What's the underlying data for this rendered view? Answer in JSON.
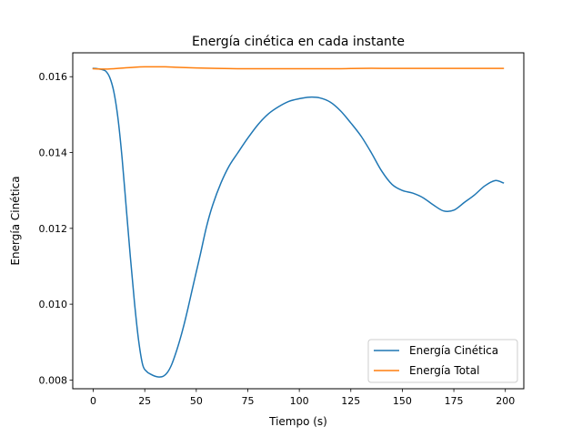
{
  "chart_data": {
    "type": "line",
    "title": "Energía cinética en cada instante",
    "xlabel": "Tiempo (s)",
    "ylabel": "Energía Cinética",
    "xlim": [
      -9.95,
      208.95
    ],
    "ylim": [
      0.00777,
      0.01663
    ],
    "xticks": [
      0,
      25,
      50,
      75,
      100,
      125,
      150,
      175,
      200
    ],
    "xtick_labels": [
      "0",
      "25",
      "50",
      "75",
      "100",
      "125",
      "150",
      "175",
      "200"
    ],
    "yticks": [
      0.008,
      0.01,
      0.012,
      0.014,
      0.016
    ],
    "ytick_labels": [
      "0.008",
      "0.010",
      "0.012",
      "0.014",
      "0.016"
    ],
    "grid": false,
    "legend_position": "lower-right",
    "series": [
      {
        "name": "Energía Cinética",
        "color": "#1f77b4",
        "x": [
          0,
          2,
          4,
          6,
          8,
          10,
          12,
          14,
          16,
          18,
          20,
          22,
          24,
          26,
          28,
          30,
          32,
          34,
          36,
          38,
          40,
          42,
          44,
          46,
          48,
          50,
          52,
          55,
          58,
          62,
          66,
          70,
          75,
          80,
          85,
          90,
          95,
          100,
          105,
          110,
          115,
          120,
          125,
          130,
          135,
          140,
          145,
          150,
          155,
          160,
          165,
          170,
          175,
          180,
          185,
          190,
          195,
          199
        ],
        "y": [
          0.01622,
          0.01621,
          0.01619,
          0.01615,
          0.01598,
          0.0156,
          0.0149,
          0.01385,
          0.01255,
          0.01125,
          0.01005,
          0.00905,
          0.0084,
          0.00822,
          0.00815,
          0.0081,
          0.00808,
          0.0081,
          0.0082,
          0.0084,
          0.0087,
          0.00905,
          0.00945,
          0.0099,
          0.01038,
          0.01085,
          0.01132,
          0.01205,
          0.01262,
          0.0132,
          0.01365,
          0.01398,
          0.01438,
          0.01474,
          0.01502,
          0.01521,
          0.01535,
          0.01542,
          0.01546,
          0.01544,
          0.01533,
          0.0151,
          0.01478,
          0.01443,
          0.01399,
          0.01351,
          0.01316,
          0.013,
          0.01293,
          0.01281,
          0.01262,
          0.01246,
          0.01248,
          0.01268,
          0.01288,
          0.01312,
          0.01326,
          0.0132
        ]
      },
      {
        "name": "Energía Total",
        "color": "#ff7f0e",
        "x": [
          0,
          5,
          10,
          15,
          20,
          25,
          30,
          35,
          40,
          50,
          60,
          70,
          80,
          90,
          100,
          110,
          120,
          130,
          140,
          150,
          160,
          170,
          180,
          190,
          199
        ],
        "y": [
          0.01621,
          0.0162,
          0.01621,
          0.01623,
          0.01625,
          0.01626,
          0.01626,
          0.01626,
          0.01625,
          0.01623,
          0.01622,
          0.01621,
          0.01621,
          0.01621,
          0.01621,
          0.01621,
          0.01621,
          0.01622,
          0.01622,
          0.01622,
          0.01622,
          0.01622,
          0.01622,
          0.01622,
          0.01622
        ]
      }
    ]
  }
}
